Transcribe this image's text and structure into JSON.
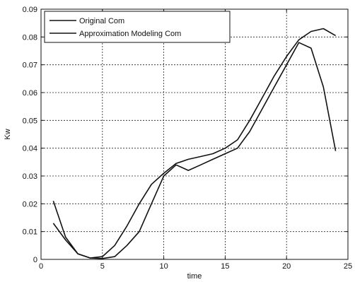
{
  "chart_data": {
    "type": "line",
    "title": "",
    "xlabel": "time",
    "ylabel": "Kw",
    "xlim": [
      0,
      25
    ],
    "ylim": [
      0,
      0.09
    ],
    "xticks": [
      0,
      5,
      10,
      15,
      20,
      25
    ],
    "yticks": [
      0,
      0.01,
      0.02,
      0.03,
      0.04,
      0.05,
      0.06,
      0.07,
      0.08,
      0.09
    ],
    "xtick_labels": [
      "0",
      "5",
      "10",
      "15",
      "20",
      "25"
    ],
    "ytick_labels": [
      "0",
      "0.01",
      "0.02",
      "0.03",
      "0.04",
      "0.05",
      "0.06",
      "0.07",
      "0.08",
      "0.09"
    ],
    "grid": true,
    "grid_style": "dotted",
    "legend_position": "top-left",
    "series": [
      {
        "name": "Original Com",
        "x": [
          1,
          2,
          3,
          4,
          5,
          6,
          7,
          8,
          9,
          10,
          11,
          12,
          13,
          14,
          15,
          16,
          17,
          18,
          19,
          20,
          21,
          22,
          23,
          24
        ],
        "y": [
          0.021,
          0.008,
          0.002,
          0.0005,
          0.0003,
          0.001,
          0.005,
          0.01,
          0.02,
          0.03,
          0.034,
          0.032,
          0.034,
          0.036,
          0.038,
          0.04,
          0.046,
          0.054,
          0.062,
          0.07,
          0.078,
          0.076,
          0.062,
          0.039
        ]
      },
      {
        "name": "Approximation Modeling Com",
        "x": [
          1,
          2,
          3,
          4,
          5,
          6,
          7,
          8,
          9,
          10,
          11,
          12,
          13,
          14,
          15,
          16,
          17,
          18,
          19,
          20,
          21,
          22,
          23,
          24
        ],
        "y": [
          0.013,
          0.007,
          0.002,
          0.0005,
          0.001,
          0.005,
          0.012,
          0.02,
          0.027,
          0.031,
          0.0345,
          0.036,
          0.037,
          0.038,
          0.04,
          0.043,
          0.05,
          0.058,
          0.066,
          0.073,
          0.079,
          0.082,
          0.083,
          0.0805
        ]
      }
    ]
  }
}
